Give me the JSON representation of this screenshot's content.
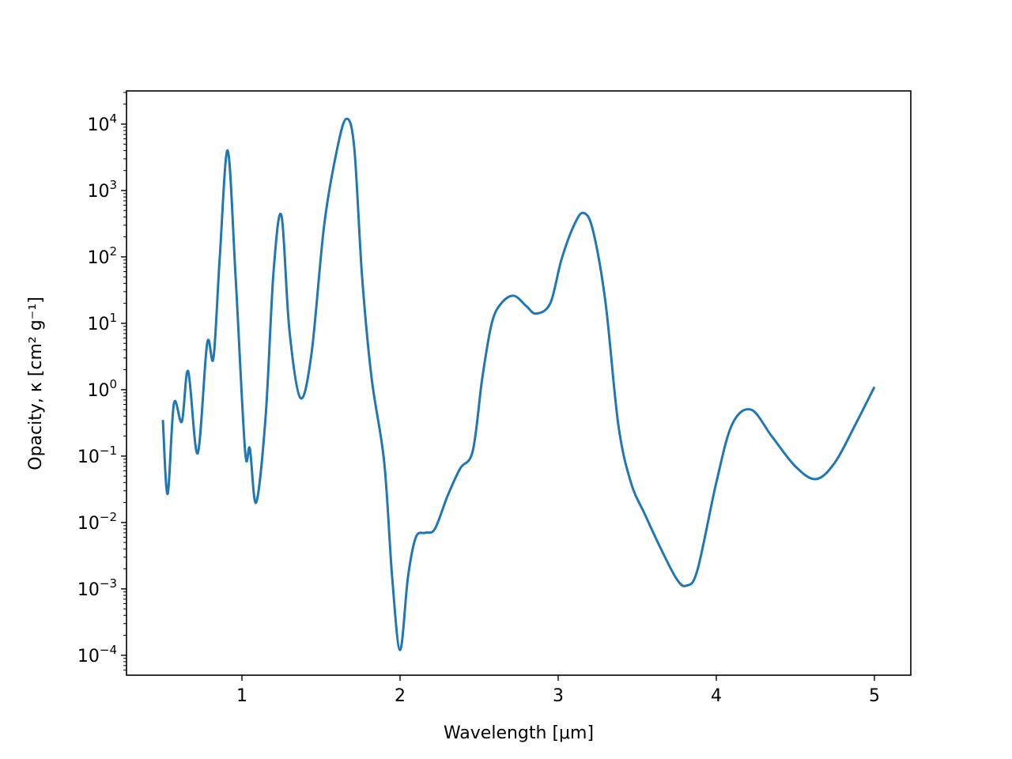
{
  "chart_data": {
    "type": "line",
    "title": "",
    "xlabel": "Wavelength [μm]",
    "ylabel": "Opacity, κ [cm² g⁻¹]",
    "xlim": [
      0.27,
      5.23
    ],
    "ylim_log10": [
      -4.3,
      4.5
    ],
    "yscale": "log",
    "grid": false,
    "x_ticks": [
      1,
      2,
      3,
      4,
      5
    ],
    "x_tick_labels": [
      "1",
      "2",
      "3",
      "4",
      "5"
    ],
    "y_tick_exponents": [
      -4,
      -3,
      -2,
      -1,
      0,
      1,
      2,
      3,
      4
    ],
    "y_tick_labels": [
      {
        "base": "10",
        "exp": "−4"
      },
      {
        "base": "10",
        "exp": "−3"
      },
      {
        "base": "10",
        "exp": "−2"
      },
      {
        "base": "10",
        "exp": "−1"
      },
      {
        "base": "10",
        "exp": "0"
      },
      {
        "base": "10",
        "exp": "1"
      },
      {
        "base": "10",
        "exp": "2"
      },
      {
        "base": "10",
        "exp": "3"
      },
      {
        "base": "10",
        "exp": "4"
      }
    ],
    "line_color": "#1f77b4",
    "series": [
      {
        "name": "",
        "x": [
          0.5,
          0.53,
          0.57,
          0.62,
          0.66,
          0.72,
          0.78,
          0.82,
          0.86,
          0.91,
          0.96,
          1.02,
          1.05,
          1.09,
          1.15,
          1.2,
          1.25,
          1.3,
          1.37,
          1.44,
          1.52,
          1.6,
          1.66,
          1.71,
          1.76,
          1.82,
          1.9,
          1.95,
          2.0,
          2.05,
          2.1,
          2.16,
          2.22,
          2.3,
          2.38,
          2.46,
          2.52,
          2.58,
          2.64,
          2.72,
          2.8,
          2.86,
          2.95,
          3.02,
          3.1,
          3.16,
          3.22,
          3.3,
          3.38,
          3.46,
          3.55,
          3.65,
          3.75,
          3.81,
          3.88,
          4.0,
          4.1,
          4.22,
          4.35,
          4.5,
          4.63,
          4.75,
          4.88,
          5.0
        ],
        "y": [
          0.35,
          0.027,
          0.62,
          0.33,
          1.9,
          0.11,
          5.0,
          3.0,
          100,
          4000,
          50,
          0.12,
          0.13,
          0.02,
          0.4,
          60,
          420,
          8,
          0.75,
          3.5,
          300,
          4000,
          12000,
          4500,
          50,
          1.5,
          0.08,
          0.0015,
          0.00012,
          0.0015,
          0.006,
          0.007,
          0.008,
          0.025,
          0.065,
          0.12,
          1.5,
          10,
          20,
          26,
          18,
          14,
          20,
          90,
          300,
          460,
          250,
          20,
          0.3,
          0.04,
          0.013,
          0.004,
          0.0014,
          0.00112,
          0.0019,
          0.04,
          0.3,
          0.5,
          0.2,
          0.07,
          0.045,
          0.08,
          0.3,
          1.1
        ]
      }
    ]
  }
}
